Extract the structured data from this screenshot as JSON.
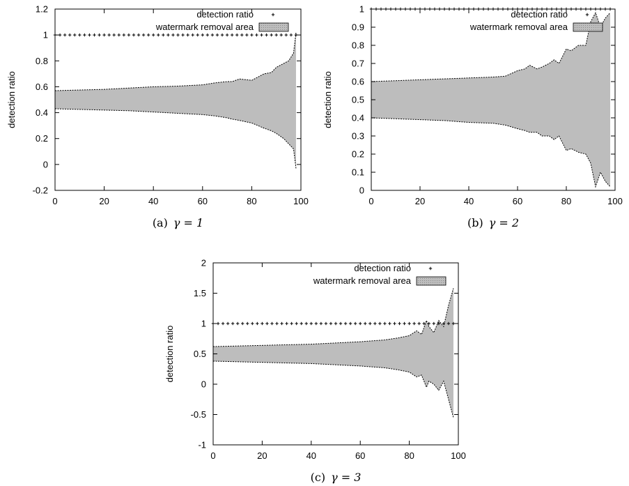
{
  "chart_data": [
    {
      "type": "area",
      "panel": "a",
      "caption": "(a)",
      "caption_gamma": "γ = 1",
      "ylabel": "detection ratio",
      "xlim": [
        0,
        100
      ],
      "ylim": [
        -0.2,
        1.2
      ],
      "xticks": [
        "0",
        "20",
        "40",
        "60",
        "80",
        "100"
      ],
      "yticks": [
        "-0.2",
        "0",
        "0.2",
        "0.4",
        "0.6",
        "0.8",
        "1",
        "1.2"
      ],
      "legend": [
        "detection ratio",
        "watermark removal area"
      ],
      "legend_position": "top-right",
      "grid": false,
      "detection_ratio": {
        "x_start": 0,
        "x_end": 98,
        "x_step": 2,
        "value": 1
      },
      "area": {
        "x": [
          0,
          10,
          20,
          30,
          40,
          50,
          60,
          65,
          70,
          72,
          75,
          80,
          85,
          88,
          90,
          93,
          95,
          97,
          98
        ],
        "upper": [
          0.57,
          0.575,
          0.58,
          0.59,
          0.6,
          0.605,
          0.615,
          0.63,
          0.64,
          0.64,
          0.66,
          0.65,
          0.7,
          0.71,
          0.75,
          0.78,
          0.8,
          0.86,
          1.02
        ],
        "lower": [
          0.43,
          0.425,
          0.42,
          0.415,
          0.405,
          0.395,
          0.385,
          0.375,
          0.36,
          0.35,
          0.34,
          0.32,
          0.28,
          0.26,
          0.24,
          0.2,
          0.16,
          0.12,
          -0.03
        ]
      }
    },
    {
      "type": "area",
      "panel": "b",
      "caption": "(b)",
      "caption_gamma": "γ = 2",
      "ylabel": "detection ratio",
      "xlim": [
        0,
        100
      ],
      "ylim": [
        0,
        1
      ],
      "xticks": [
        "0",
        "20",
        "40",
        "60",
        "80",
        "100"
      ],
      "yticks": [
        "0",
        "0.1",
        "0.2",
        "0.3",
        "0.4",
        "0.5",
        "0.6",
        "0.7",
        "0.8",
        "0.9",
        "1"
      ],
      "legend": [
        "detection ratio",
        "watermark removal area"
      ],
      "legend_position": "top-right",
      "grid": false,
      "detection_ratio": {
        "x_start": 0,
        "x_end": 98,
        "x_step": 2,
        "value": 1
      },
      "area": {
        "x": [
          0,
          10,
          20,
          30,
          40,
          50,
          55,
          60,
          63,
          65,
          68,
          70,
          73,
          75,
          77,
          80,
          82,
          85,
          88,
          90,
          92,
          94,
          96,
          98
        ],
        "upper": [
          0.6,
          0.605,
          0.61,
          0.615,
          0.62,
          0.625,
          0.63,
          0.66,
          0.67,
          0.69,
          0.67,
          0.68,
          0.7,
          0.72,
          0.7,
          0.78,
          0.77,
          0.8,
          0.8,
          0.93,
          0.98,
          0.9,
          0.95,
          0.98
        ],
        "lower": [
          0.4,
          0.395,
          0.39,
          0.385,
          0.375,
          0.37,
          0.36,
          0.34,
          0.33,
          0.32,
          0.32,
          0.3,
          0.3,
          0.28,
          0.3,
          0.22,
          0.23,
          0.21,
          0.2,
          0.15,
          0.02,
          0.1,
          0.05,
          0.02
        ]
      }
    },
    {
      "type": "area",
      "panel": "c",
      "caption": "(c)",
      "caption_gamma": "γ = 3",
      "ylabel": "detection ratio",
      "xlim": [
        0,
        100
      ],
      "ylim": [
        -1,
        2
      ],
      "xticks": [
        "0",
        "20",
        "40",
        "60",
        "80",
        "100"
      ],
      "yticks": [
        "-1",
        "-0.5",
        "0",
        "0.5",
        "1",
        "1.5",
        "2"
      ],
      "legend": [
        "detection ratio",
        "watermark removal area"
      ],
      "legend_position": "top-right",
      "grid": false,
      "detection_ratio": {
        "x_start": 0,
        "x_end": 98,
        "x_step": 2,
        "value": 1
      },
      "area": {
        "x": [
          0,
          10,
          20,
          30,
          40,
          50,
          60,
          70,
          75,
          80,
          83,
          85,
          87,
          88,
          90,
          92,
          94,
          96,
          98
        ],
        "upper": [
          0.62,
          0.63,
          0.64,
          0.65,
          0.66,
          0.68,
          0.7,
          0.73,
          0.76,
          0.8,
          0.88,
          0.82,
          1.05,
          0.95,
          0.85,
          1.05,
          0.95,
          1.3,
          1.58
        ],
        "lower": [
          0.38,
          0.37,
          0.36,
          0.35,
          0.34,
          0.32,
          0.3,
          0.27,
          0.24,
          0.2,
          0.12,
          0.15,
          -0.05,
          0.05,
          0.0,
          -0.1,
          0.05,
          -0.25,
          -0.55
        ]
      }
    }
  ]
}
